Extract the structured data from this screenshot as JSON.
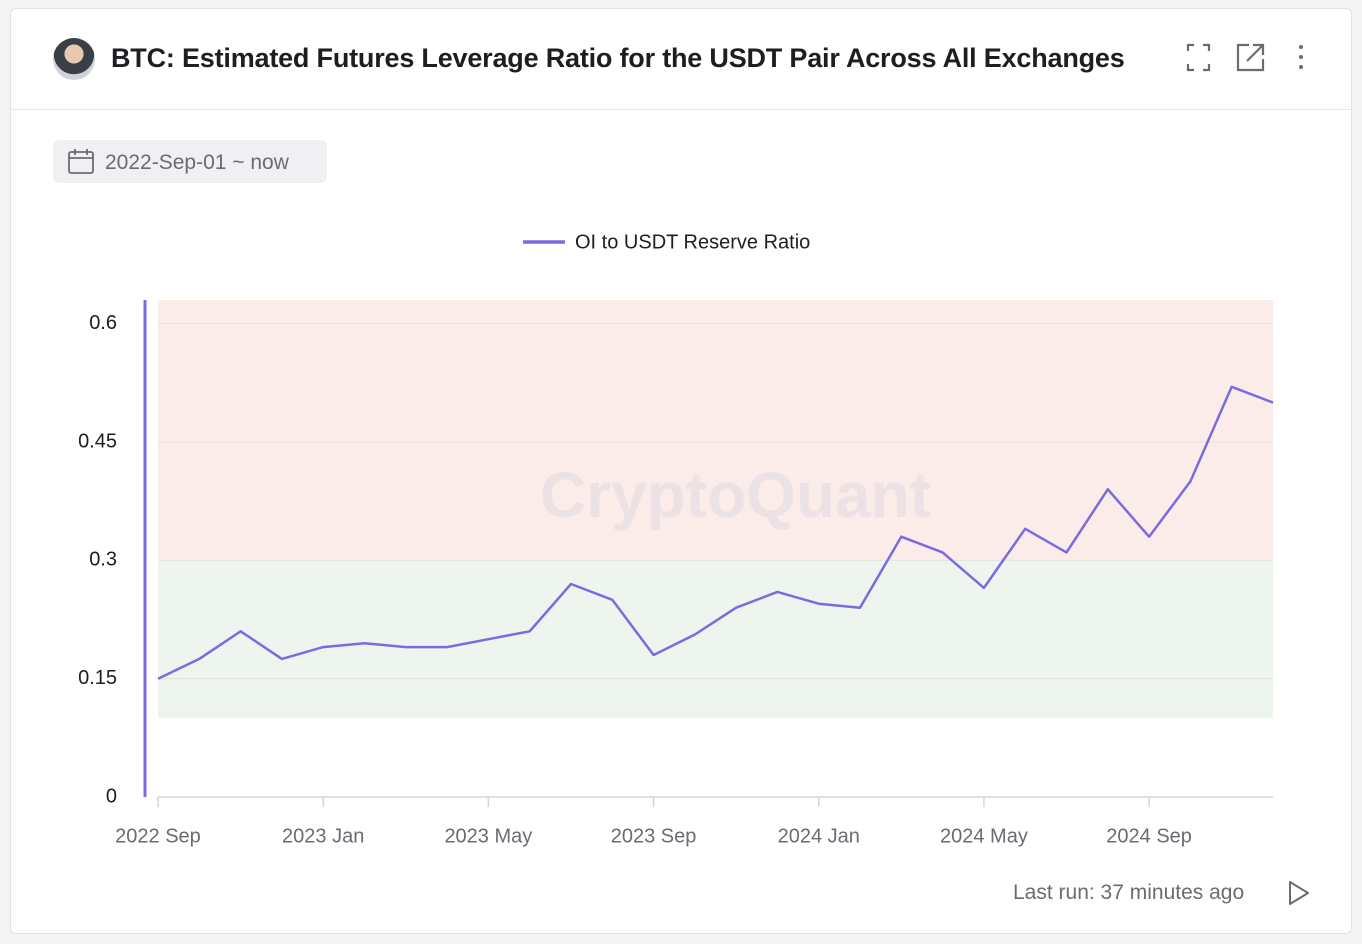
{
  "header": {
    "title": "BTC: Estimated Futures Leverage Ratio for the USDT Pair Across All Exchanges"
  },
  "date_range": "2022-Sep-01 ~ now",
  "footer": {
    "last_run": "Last run: 37 minutes ago"
  },
  "chart_data": {
    "type": "line",
    "watermark": "CryptoQuant",
    "x": [
      "2022-09",
      "2022-10",
      "2022-11",
      "2022-12",
      "2023-01",
      "2023-02",
      "2023-03",
      "2023-04",
      "2023-05",
      "2023-06",
      "2023-07",
      "2023-08",
      "2023-09",
      "2023-10",
      "2023-11",
      "2023-12",
      "2024-01",
      "2024-02",
      "2024-03",
      "2024-04",
      "2024-05",
      "2024-06",
      "2024-07",
      "2024-08",
      "2024-09",
      "2024-10",
      "2024-11",
      "2024-12"
    ],
    "series": [
      {
        "name": "OI to USDT Reserve Ratio",
        "color": "#7b6be0",
        "values": [
          0.15,
          0.175,
          0.21,
          0.175,
          0.19,
          0.195,
          0.19,
          0.19,
          0.2,
          0.21,
          0.27,
          0.25,
          0.18,
          0.206,
          0.24,
          0.26,
          0.245,
          0.24,
          0.33,
          0.31,
          0.265,
          0.34,
          0.31,
          0.39,
          0.33,
          0.4,
          0.52,
          0.5
        ]
      }
    ],
    "xlim": [
      "2022-09",
      "2024-12"
    ],
    "xticks": [
      {
        "value": "2022-09",
        "label": "2022 Sep"
      },
      {
        "value": "2023-01",
        "label": "2023 Jan"
      },
      {
        "value": "2023-05",
        "label": "2023 May"
      },
      {
        "value": "2023-09",
        "label": "2023 Sep"
      },
      {
        "value": "2024-01",
        "label": "2024 Jan"
      },
      {
        "value": "2024-05",
        "label": "2024 May"
      },
      {
        "value": "2024-09",
        "label": "2024 Sep"
      }
    ],
    "ylim": [
      0,
      0.63
    ],
    "yticks": [
      0,
      0.15,
      0.3,
      0.45,
      0.6
    ],
    "grid": true,
    "bands": [
      {
        "from": 0.3,
        "to": 0.63,
        "color": "#fbece9"
      },
      {
        "from": 0.1,
        "to": 0.3,
        "color": "#edf5ee"
      }
    ],
    "legend": "top"
  }
}
